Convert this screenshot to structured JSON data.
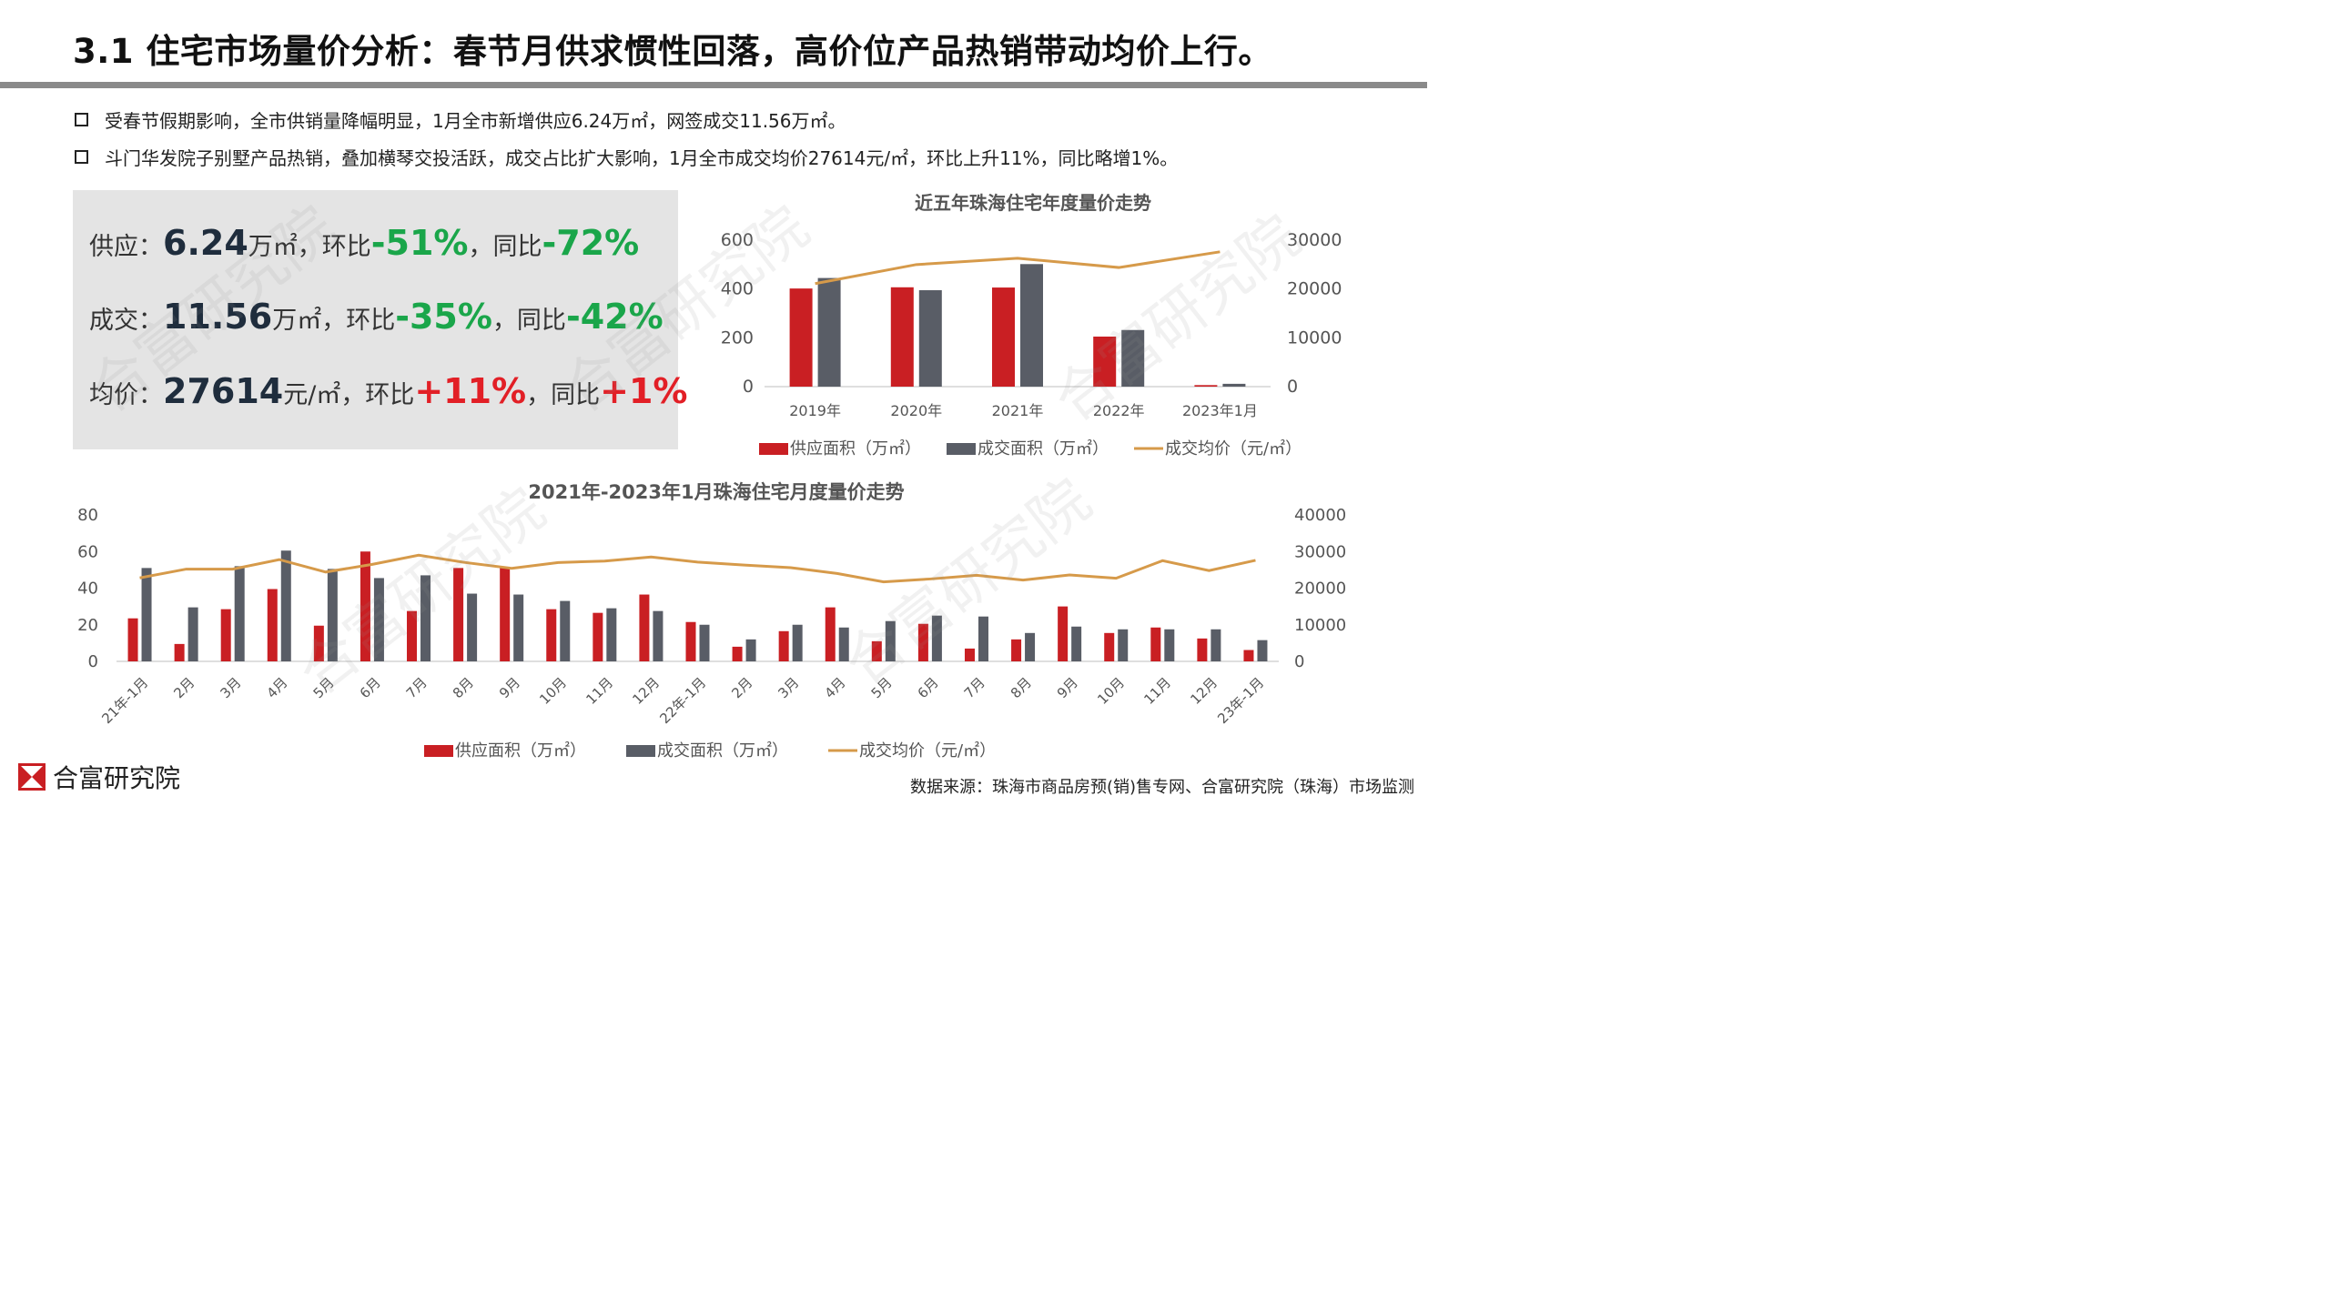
{
  "header": {
    "title": "3.1 住宅市场量价分析：春节月供求惯性回落，高价位产品热销带动均价上行。"
  },
  "bullets": [
    "受春节假期影响，全市供销量降幅明显，1月全市新增供应6.24万㎡，网签成交11.56万㎡。",
    "斗门华发院子别墅产品热销，叠加横琴交投活跃，成交占比扩大影响，1月全市成交均价27614元/㎡，环比上升11%，同比略增1%。"
  ],
  "stats": {
    "supply": {
      "label": "供应：",
      "value": "6.24",
      "unit": "万㎡",
      "mom_label": "，环比",
      "mom": "-51%",
      "yoy_label": "，同比",
      "yoy": "-72%"
    },
    "deal": {
      "label": "成交：",
      "value": "11.56",
      "unit": "万㎡",
      "mom_label": "，环比",
      "mom": "-35%",
      "yoy_label": "，同比",
      "yoy": "-42%"
    },
    "price": {
      "label": "均价：",
      "value": "27614",
      "unit": "元/㎡",
      "mom_label": "，环比",
      "mom": "+11%",
      "yoy_label": "，同比",
      "yoy": "+1%"
    }
  },
  "colors": {
    "supply": "#c91f23",
    "deal": "#595d66",
    "price": "#d69a4a",
    "positive": "#e21f26",
    "negative": "#1aa64a"
  },
  "watermark": "合富研究院",
  "chart_data": [
    {
      "type": "bar",
      "title": "近五年珠海住宅年度量价走势",
      "categories": [
        "2019年",
        "2020年",
        "2021年",
        "2022年",
        "2023年1月"
      ],
      "series": [
        {
          "name": "供应面积（万㎡）",
          "type": "bar",
          "axis": "left",
          "values": [
            402,
            407,
            406,
            205,
            6.24
          ]
        },
        {
          "name": "成交面积（万㎡）",
          "type": "bar",
          "axis": "left",
          "values": [
            445,
            395,
            502,
            232,
            11.56
          ]
        },
        {
          "name": "成交均价（元/㎡）",
          "type": "line",
          "axis": "right",
          "values": [
            21100,
            25000,
            26300,
            24400,
            27614
          ]
        }
      ],
      "ylim_left": [
        0,
        600
      ],
      "ylim_right": [
        0,
        30000
      ],
      "yticks_left": [
        "0",
        "200",
        "400",
        "600"
      ],
      "yticks_right": [
        "0",
        "10000",
        "20000",
        "30000"
      ],
      "legend": "bottom"
    },
    {
      "type": "bar",
      "title": "2021年-2023年1月珠海住宅月度量价走势",
      "categories": [
        "21年-1月",
        "2月",
        "3月",
        "4月",
        "5月",
        "6月",
        "7月",
        "8月",
        "9月",
        "10月",
        "11月",
        "12月",
        "22年-1月",
        "2月",
        "3月",
        "4月",
        "5月",
        "6月",
        "7月",
        "8月",
        "9月",
        "10月",
        "11月",
        "12月",
        "23年-1月"
      ],
      "series": [
        {
          "name": "供应面积（万㎡）",
          "type": "bar",
          "axis": "left",
          "values": [
            23.5,
            9.5,
            28.5,
            39.5,
            19.5,
            60,
            27.5,
            51,
            51,
            28.5,
            26.5,
            36.5,
            21.5,
            8,
            16.5,
            29.5,
            11,
            20.5,
            7,
            12,
            30,
            15.5,
            18.5,
            12.5,
            6.2
          ]
        },
        {
          "name": "成交面积（万㎡）",
          "type": "bar",
          "axis": "left",
          "values": [
            51,
            29.5,
            52,
            60.5,
            50.5,
            45.5,
            47,
            37,
            36.5,
            33,
            29,
            27.5,
            20,
            12,
            20,
            18.5,
            22,
            25,
            24.5,
            15.5,
            19,
            17.5,
            17.5,
            17.5,
            11.6
          ]
        },
        {
          "name": "成交均价（元/㎡）",
          "type": "line",
          "axis": "right",
          "values": [
            22800,
            25200,
            25200,
            27800,
            24400,
            26500,
            29000,
            27000,
            25400,
            27000,
            27400,
            28500,
            27100,
            26300,
            25600,
            24000,
            21700,
            22500,
            23500,
            22200,
            23600,
            22700,
            27500,
            24800,
            27600
          ]
        }
      ],
      "ylim_left": [
        0,
        80
      ],
      "ylim_right": [
        0,
        40000
      ],
      "yticks_left": [
        "0",
        "20",
        "40",
        "60",
        "80"
      ],
      "yticks_right": [
        "0",
        "10000",
        "20000",
        "30000",
        "40000"
      ],
      "legend": "bottom"
    }
  ],
  "footer": {
    "logo_text": "合富研究院",
    "source": "数据来源：珠海市商品房预(销)售专网、合富研究院（珠海）市场监测"
  }
}
